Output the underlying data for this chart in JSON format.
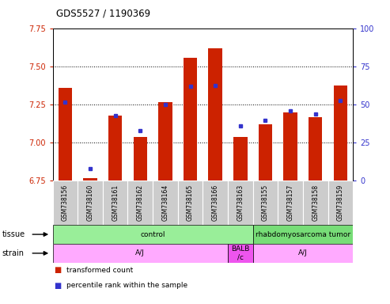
{
  "title": "GDS5527 / 1190369",
  "samples": [
    "GSM738156",
    "GSM738160",
    "GSM738161",
    "GSM738162",
    "GSM738164",
    "GSM738165",
    "GSM738166",
    "GSM738163",
    "GSM738155",
    "GSM738157",
    "GSM738158",
    "GSM738159"
  ],
  "transformed_count": [
    7.36,
    6.77,
    7.18,
    7.04,
    7.27,
    7.56,
    7.62,
    7.04,
    7.12,
    7.2,
    7.17,
    7.38
  ],
  "percentile_rank": [
    52,
    8,
    43,
    33,
    50,
    62,
    63,
    36,
    40,
    46,
    44,
    53
  ],
  "ymin": 6.75,
  "ymax": 7.75,
  "y2min": 0,
  "y2max": 100,
  "yticks": [
    6.75,
    7.0,
    7.25,
    7.5,
    7.75
  ],
  "y2ticks": [
    0,
    25,
    50,
    75,
    100
  ],
  "bar_color": "#cc2200",
  "dot_color": "#3333cc",
  "bar_width": 0.55,
  "tissue_groups": [
    {
      "label": "control",
      "start": 0,
      "end": 7,
      "color": "#99ee99"
    },
    {
      "label": "rhabdomyosarcoma tumor",
      "start": 8,
      "end": 11,
      "color": "#77dd77"
    }
  ],
  "strain_groups": [
    {
      "label": "A/J",
      "start": 0,
      "end": 6,
      "color": "#ffaaff"
    },
    {
      "label": "BALB\n/c",
      "start": 7,
      "end": 7,
      "color": "#ee55ee"
    },
    {
      "label": "A/J",
      "start": 8,
      "end": 11,
      "color": "#ffaaff"
    }
  ],
  "tissue_label": "tissue",
  "strain_label": "strain",
  "legend_items": [
    {
      "label": "transformed count",
      "color": "#cc2200"
    },
    {
      "label": "percentile rank within the sample",
      "color": "#3333cc"
    }
  ],
  "tick_color_left": "#cc2200",
  "tick_color_right": "#3333cc",
  "bg_color": "#ffffff",
  "plot_bg": "#ffffff",
  "x_tick_bg": "#cccccc",
  "grid_lines": [
    7.0,
    7.25,
    7.5
  ]
}
